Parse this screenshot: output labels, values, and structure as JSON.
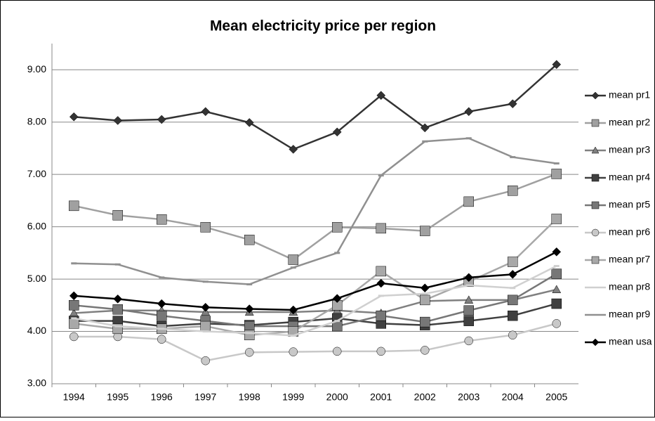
{
  "chart_data": {
    "type": "line",
    "title": "Mean electricity price per region",
    "categories": [
      "1994",
      "1995",
      "1996",
      "1997",
      "1998",
      "1999",
      "2000",
      "2001",
      "2002",
      "2003",
      "2004",
      "2005"
    ],
    "ylim": [
      3,
      9.5
    ],
    "yticks": [
      {
        "value": 3,
        "label": "3.00"
      },
      {
        "value": 4,
        "label": "4.00"
      },
      {
        "value": 5,
        "label": "5.00"
      },
      {
        "value": 6,
        "label": "6.00"
      },
      {
        "value": 7,
        "label": "7.00"
      },
      {
        "value": 8,
        "label": "8.00"
      },
      {
        "value": 9,
        "label": "9.00"
      }
    ],
    "grid": true,
    "legend": "right",
    "series": [
      {
        "name": "mean pr1",
        "color": "#333333",
        "marker": "diamond",
        "values": [
          8.1,
          8.03,
          8.05,
          8.2,
          7.99,
          7.48,
          7.81,
          8.51,
          7.89,
          8.2,
          8.35,
          9.1
        ]
      },
      {
        "name": "mean pr2",
        "color": "#a0a0a0",
        "marker": "square",
        "values": [
          6.4,
          6.22,
          6.14,
          5.99,
          5.75,
          5.37,
          5.99,
          5.97,
          5.92,
          6.48,
          6.69,
          7.01
        ]
      },
      {
        "name": "mean pr3",
        "color": "#808080",
        "marker": "triangle",
        "values": [
          4.35,
          4.4,
          4.4,
          4.37,
          4.37,
          4.37,
          4.4,
          4.35,
          4.58,
          4.6,
          4.6,
          4.8
        ]
      },
      {
        "name": "mean pr4",
        "color": "#404040",
        "marker": "square",
        "values": [
          4.2,
          4.2,
          4.1,
          4.15,
          4.12,
          4.18,
          4.25,
          4.15,
          4.12,
          4.2,
          4.3,
          4.53
        ]
      },
      {
        "name": "mean pr5",
        "color": "#777777",
        "marker": "square",
        "values": [
          4.5,
          4.42,
          4.3,
          4.2,
          4.1,
          4.1,
          4.1,
          4.3,
          4.18,
          4.4,
          4.6,
          5.1
        ]
      },
      {
        "name": "mean pr6",
        "color": "#c8c8c8",
        "marker": "circle",
        "values": [
          3.9,
          3.9,
          3.85,
          3.44,
          3.6,
          3.61,
          3.62,
          3.62,
          3.64,
          3.82,
          3.93,
          4.15
        ]
      },
      {
        "name": "mean pr7",
        "color": "#a8a8a8",
        "marker": "square",
        "values": [
          4.15,
          4.05,
          4.05,
          4.1,
          3.93,
          4.0,
          4.5,
          5.15,
          4.6,
          4.95,
          5.33,
          6.15
        ]
      },
      {
        "name": "mean pr8",
        "color": "#d0d0d0",
        "marker": "none",
        "values": [
          4.25,
          4.1,
          4.05,
          4.0,
          3.97,
          3.92,
          4.2,
          4.68,
          4.72,
          4.88,
          4.83,
          5.25
        ]
      },
      {
        "name": "mean pr9",
        "color": "#909090",
        "marker": "none",
        "values": [
          5.3,
          5.28,
          5.03,
          4.95,
          4.9,
          5.22,
          5.5,
          6.98,
          7.63,
          7.69,
          7.33,
          7.21
        ]
      },
      {
        "name": "mean usa",
        "color": "#000000",
        "marker": "diamond",
        "values": [
          4.68,
          4.62,
          4.53,
          4.46,
          4.43,
          4.41,
          4.63,
          4.92,
          4.83,
          5.03,
          5.09,
          5.52
        ]
      }
    ]
  }
}
